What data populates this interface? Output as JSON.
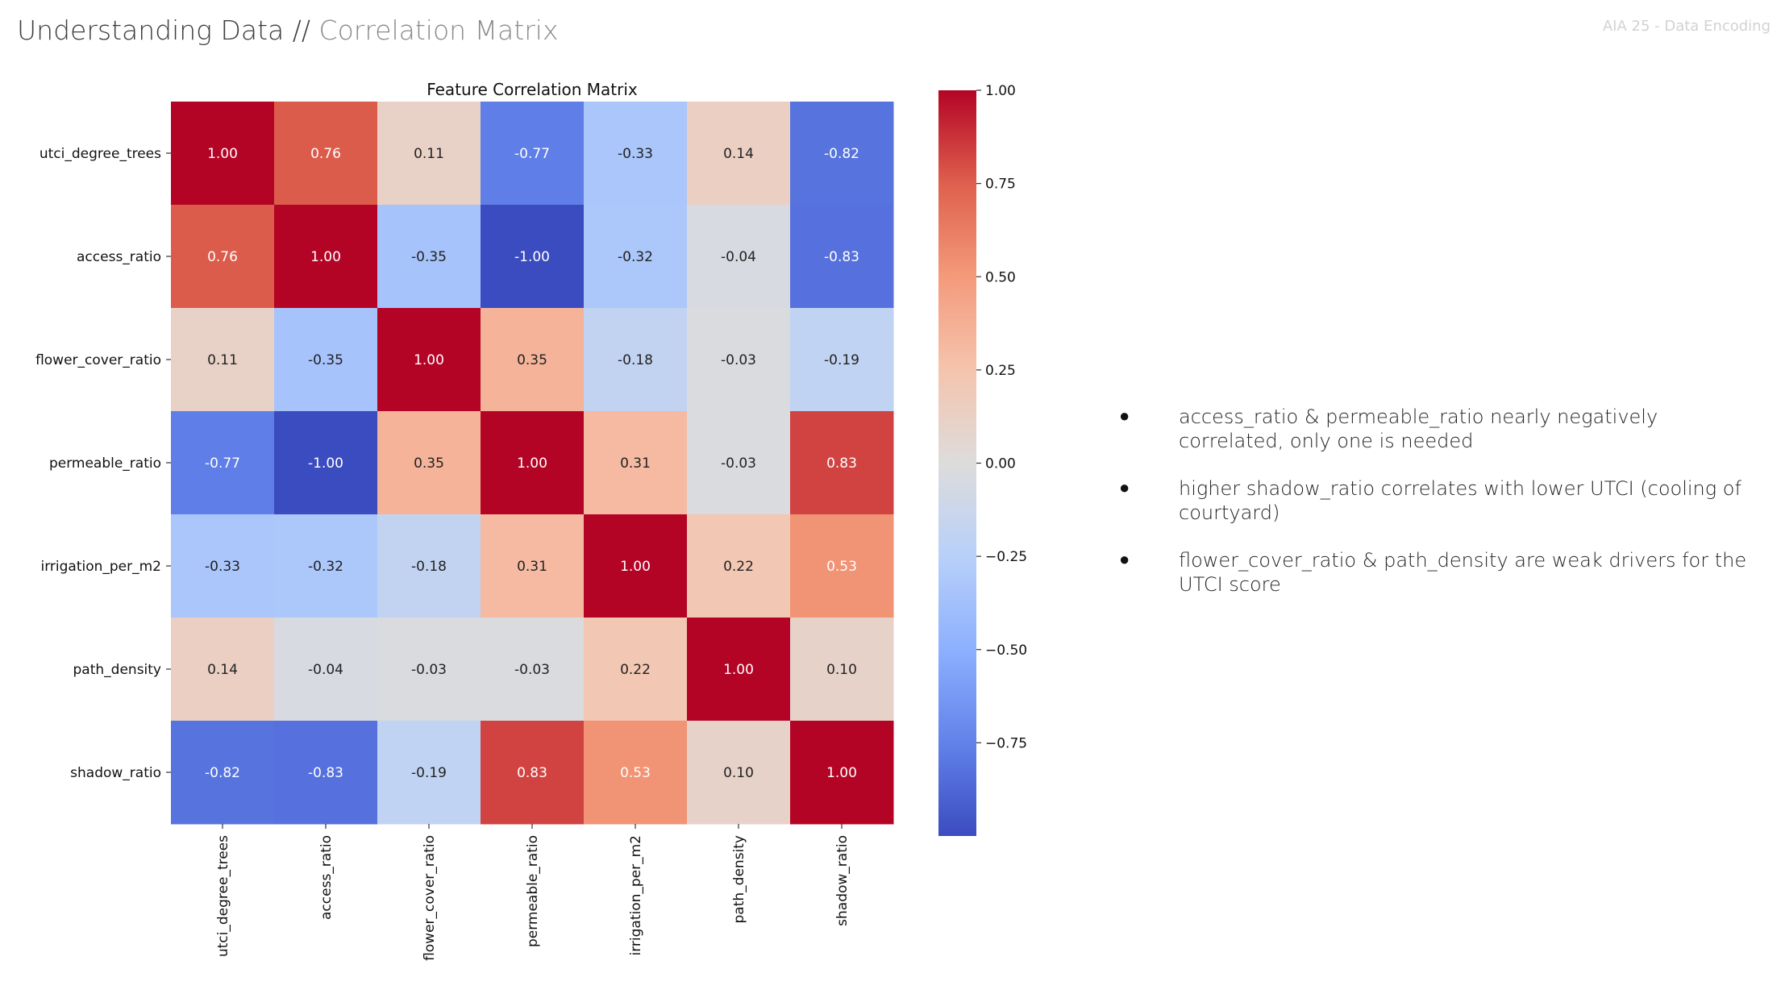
{
  "header": {
    "title_main": "Understanding Data",
    "title_sep": "//",
    "title_sub": "Correlation Matrix",
    "corner_tag": "AIA 25 - Data Encoding"
  },
  "chart_data": {
    "type": "heatmap",
    "title": "Feature Correlation Matrix",
    "labels": [
      "utci_degree_trees",
      "access_ratio",
      "flower_cover_ratio",
      "permeable_ratio",
      "irrigation_per_m2",
      "path_density",
      "shadow_ratio"
    ],
    "matrix": [
      [
        1.0,
        0.76,
        0.11,
        -0.77,
        -0.33,
        0.14,
        -0.82
      ],
      [
        0.76,
        1.0,
        -0.35,
        -1.0,
        -0.32,
        -0.04,
        -0.83
      ],
      [
        0.11,
        -0.35,
        1.0,
        0.35,
        -0.18,
        -0.03,
        -0.19
      ],
      [
        -0.77,
        -1.0,
        0.35,
        1.0,
        0.31,
        -0.03,
        0.83
      ],
      [
        -0.33,
        -0.32,
        -0.18,
        0.31,
        1.0,
        0.22,
        0.53
      ],
      [
        0.14,
        -0.04,
        -0.03,
        -0.03,
        0.22,
        1.0,
        0.1
      ],
      [
        -0.82,
        -0.83,
        -0.19,
        0.83,
        0.53,
        0.1,
        1.0
      ]
    ],
    "colormap": "coolwarm",
    "colorbar": {
      "vmin": -1.0,
      "vmax": 1.0,
      "ticks": [
        1.0,
        0.75,
        0.5,
        0.25,
        0.0,
        -0.25,
        -0.5,
        -0.75
      ],
      "tick_labels": [
        "1.00",
        "0.75",
        "0.50",
        "0.25",
        "0.00",
        "−0.25",
        "−0.50",
        "−0.75"
      ]
    },
    "annotations_format": "0.00"
  },
  "notes": [
    "access_ratio & permeable_ratio nearly negatively correlated, only one is needed",
    "higher shadow_ratio correlates with lower UTCI (cooling of courtyard)",
    "flower_cover_ratio & path_density are weak drivers for the UTCI score"
  ],
  "bullet_glyph": "●"
}
